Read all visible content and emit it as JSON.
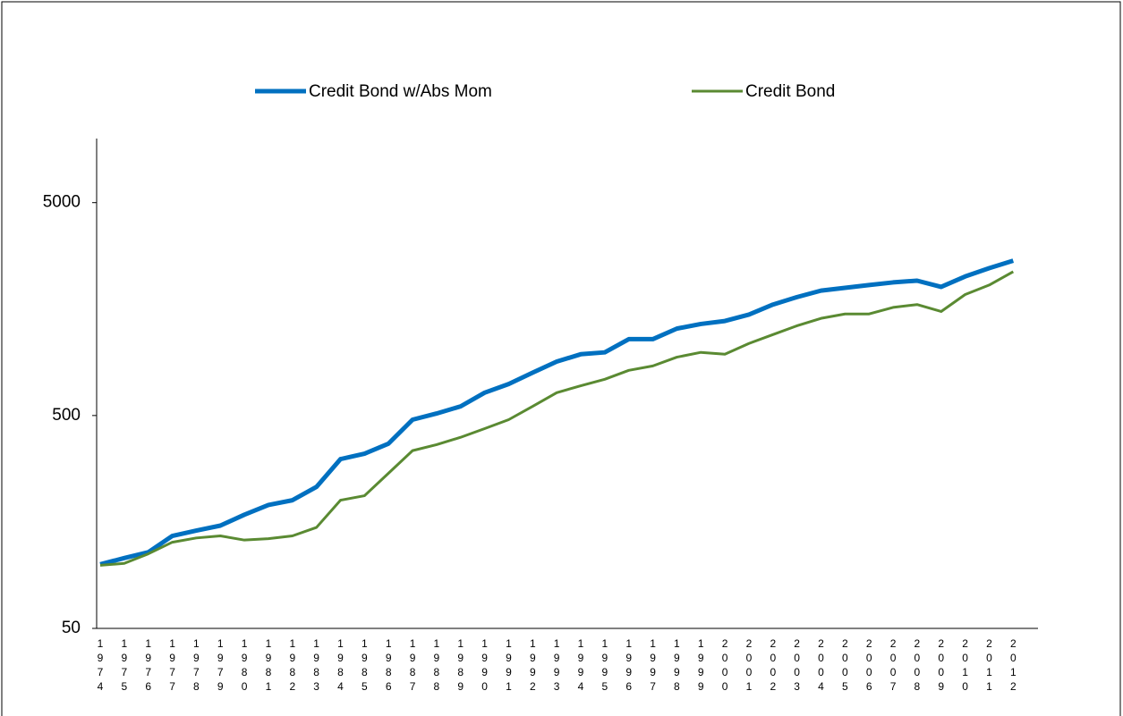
{
  "chart_data": {
    "type": "line",
    "log_scale": true,
    "grid": false,
    "legend_position": "top",
    "categories": [
      "1974",
      "1975",
      "1976",
      "1977",
      "1978",
      "1979",
      "1980",
      "1981",
      "1982",
      "1983",
      "1984",
      "1985",
      "1986",
      "1987",
      "1988",
      "1989",
      "1990",
      "1991",
      "1992",
      "1993",
      "1994",
      "1995",
      "1996",
      "1997",
      "1998",
      "1999",
      "2000",
      "2001",
      "2002",
      "2003",
      "2004",
      "2005",
      "2006",
      "2007",
      "2008",
      "2009",
      "2010",
      "2011",
      "2012"
    ],
    "series": [
      {
        "name": "Credit Bond w/Abs Mom",
        "color": "#0070c0",
        "width": 5,
        "values": [
          100,
          107,
          114,
          136,
          144,
          152,
          171,
          190,
          200,
          231,
          312,
          331,
          369,
          478,
          511,
          552,
          640,
          703,
          795,
          896,
          970,
          990,
          1142,
          1142,
          1280,
          1346,
          1390,
          1490,
          1660,
          1800,
          1930,
          1990,
          2050,
          2110,
          2150,
          2010,
          2250,
          2460,
          2670
        ]
      },
      {
        "name": "Credit Bond",
        "color": "#5a8a32",
        "width": 3,
        "values": [
          99,
          101,
          112,
          127,
          133,
          136,
          130,
          132,
          136,
          149,
          200,
          210,
          268,
          342,
          365,
          395,
          434,
          478,
          552,
          640,
          690,
          740,
          815,
          855,
          940,
          990,
          970,
          1090,
          1200,
          1320,
          1430,
          1500,
          1500,
          1610,
          1660,
          1540,
          1850,
          2050,
          2370
        ]
      }
    ],
    "ylim": [
      50,
      10000
    ],
    "yticks": [
      50,
      500,
      5000
    ]
  }
}
